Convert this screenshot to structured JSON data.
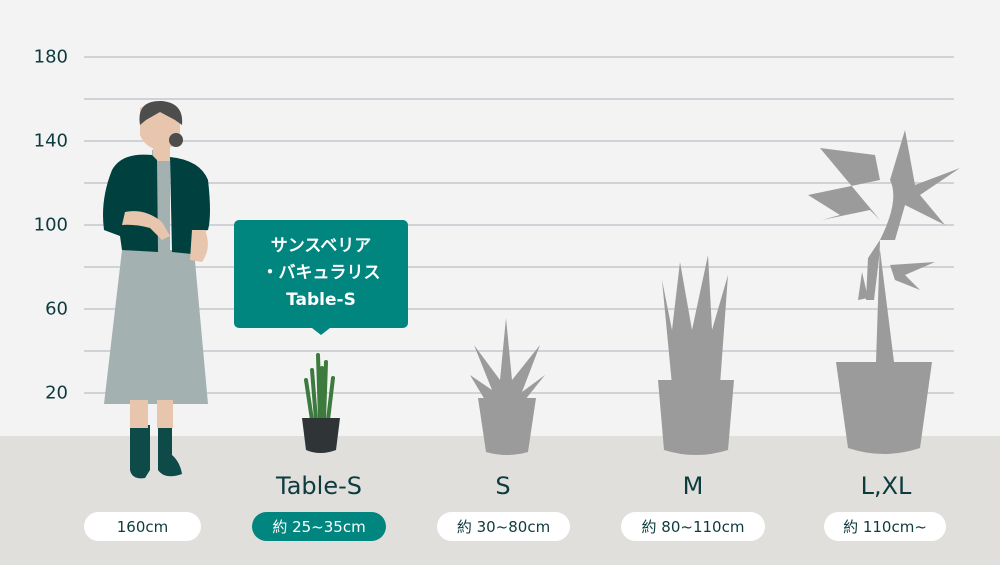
{
  "y_axis": {
    "unit": "cm",
    "ticks": [
      "180",
      "140",
      "100",
      "60",
      "20"
    ]
  },
  "callout": {
    "line1": "サンスベリア",
    "line2": "・バキュラリス",
    "line3": "Table-S"
  },
  "items": [
    {
      "size": "",
      "height": "160cm",
      "active": false
    },
    {
      "size": "Table-S",
      "height": "約 25~35cm",
      "active": true
    },
    {
      "size": "S",
      "height": "約 30~80cm",
      "active": false
    },
    {
      "size": "M",
      "height": "約 80~110cm",
      "active": false
    },
    {
      "size": "L,XL",
      "height": "約 110cm~",
      "active": false
    }
  ],
  "colors": {
    "accent": "#00857f",
    "text": "#0d3b3e",
    "silhouette": "#9b9b9b",
    "floor": "#e0dfdb",
    "background": "#f3f3f3"
  }
}
